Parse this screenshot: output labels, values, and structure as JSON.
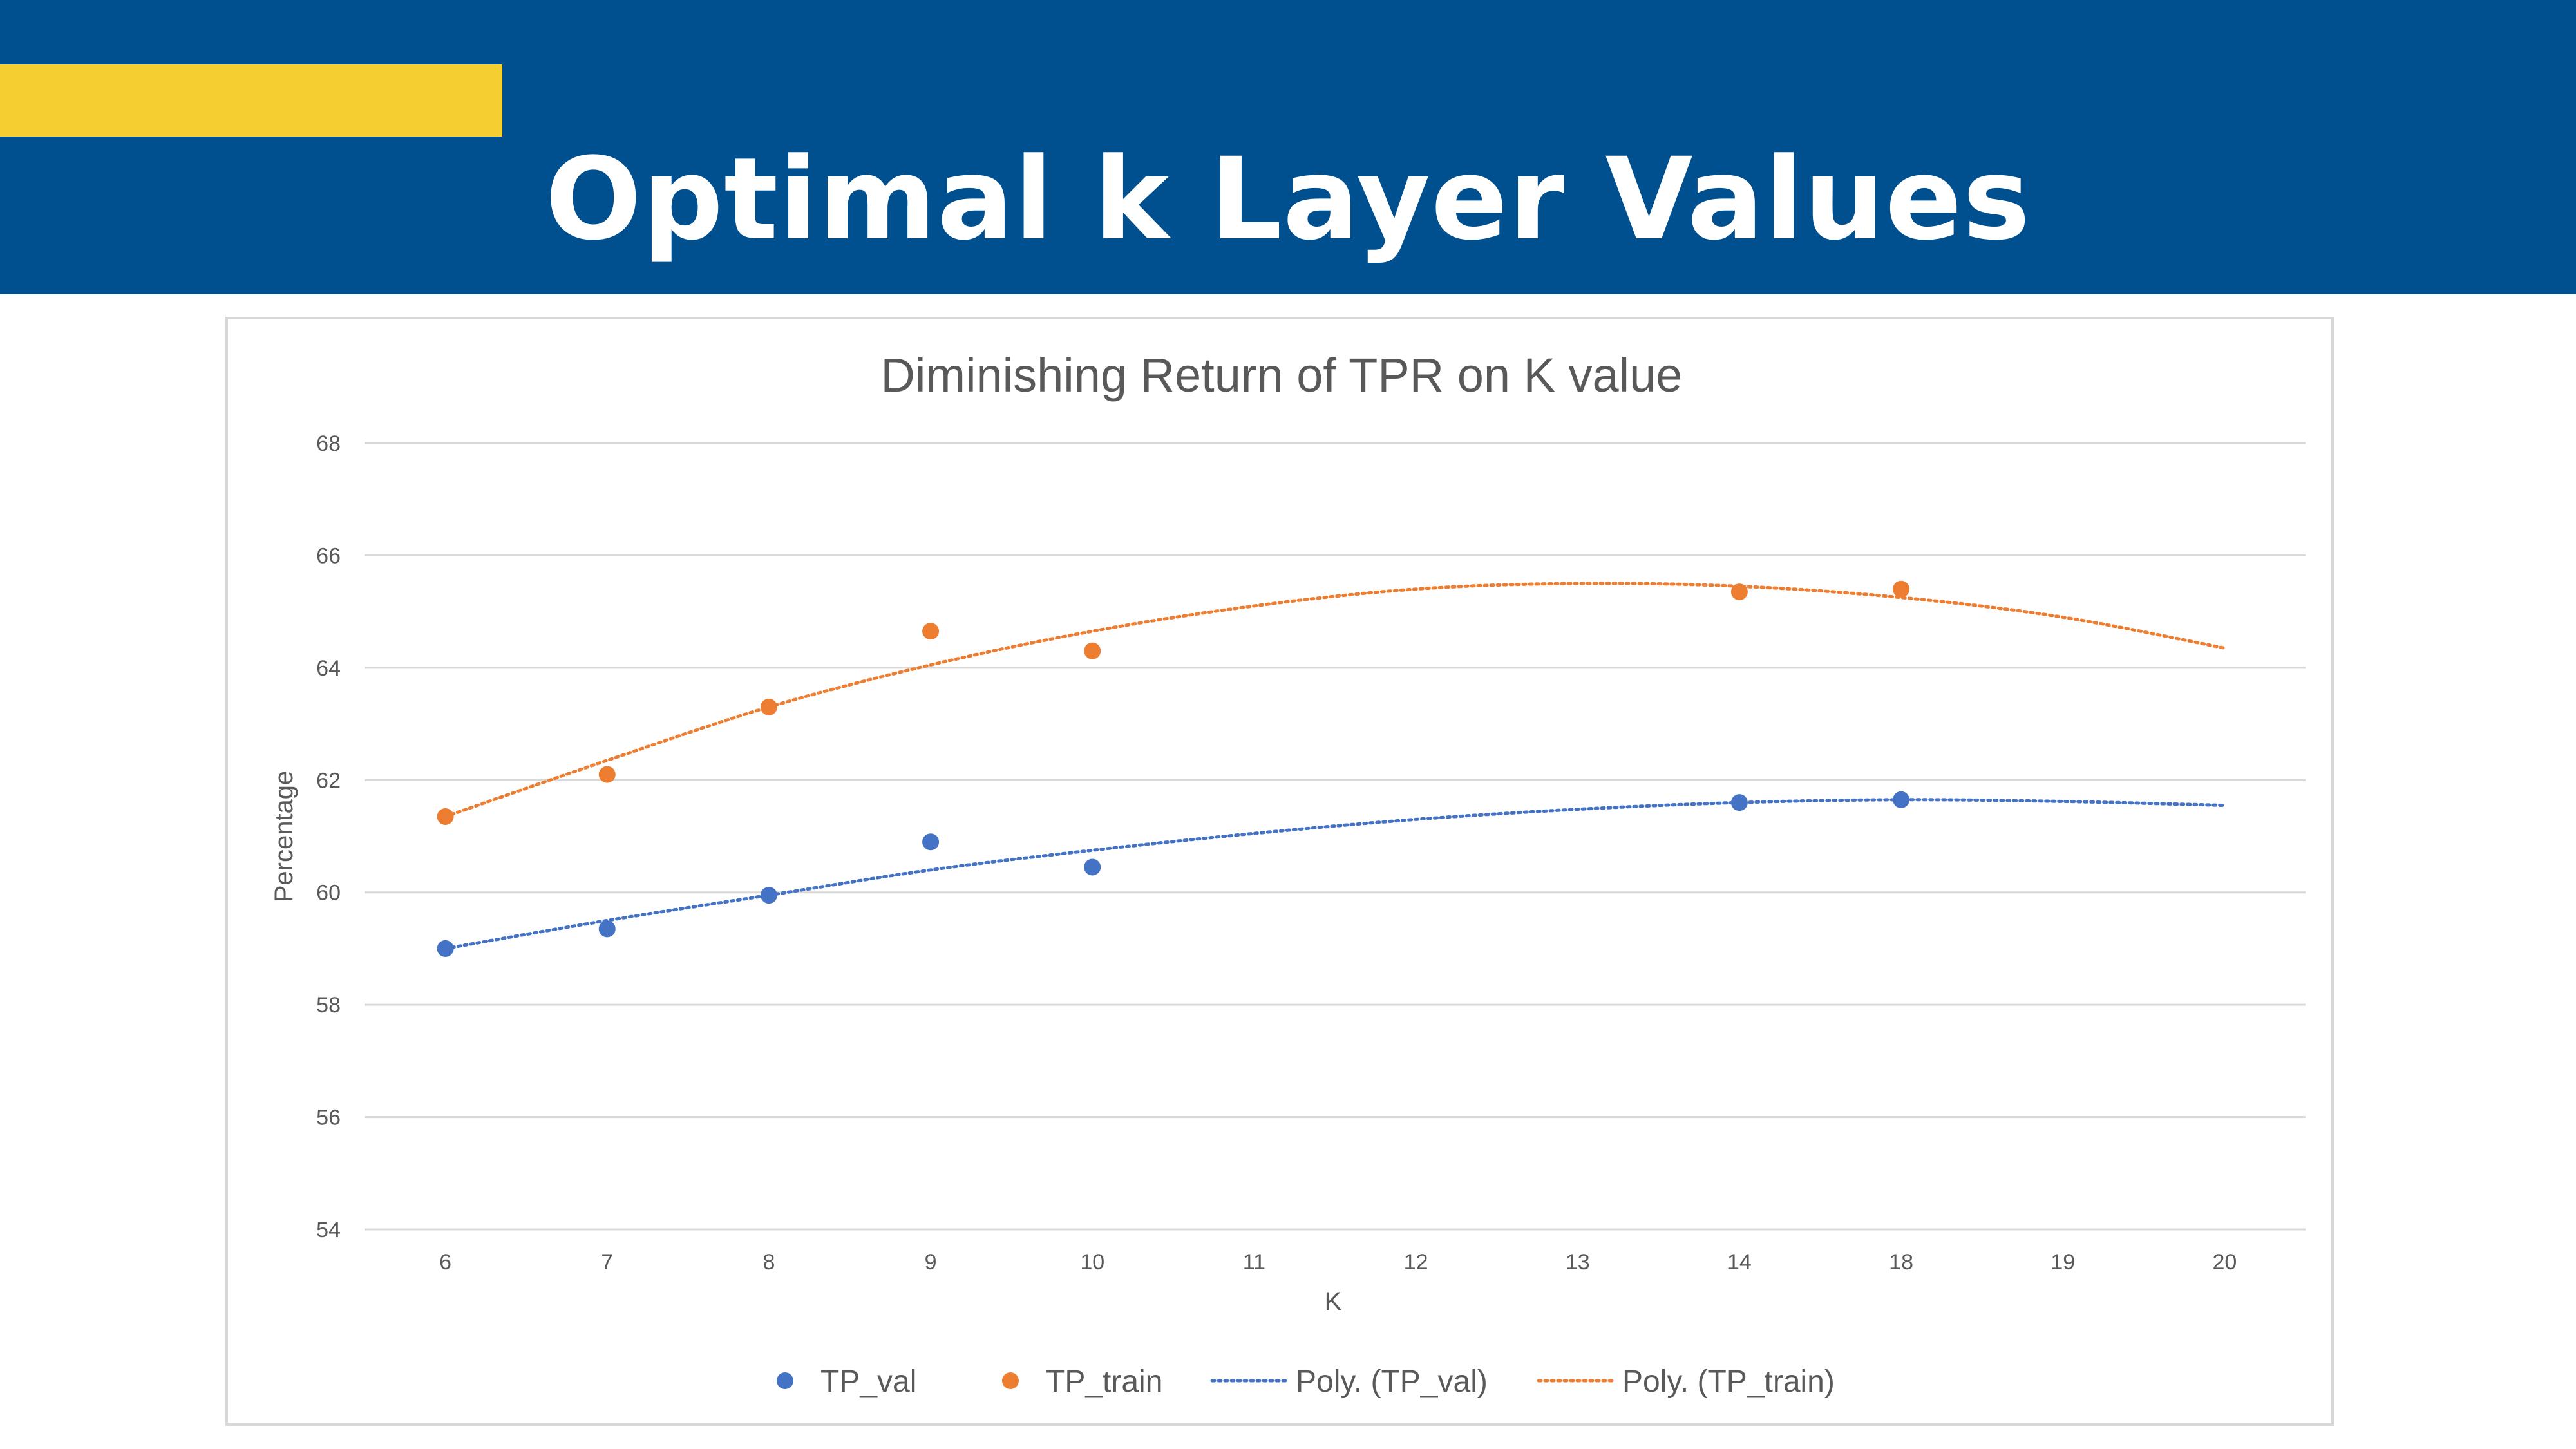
{
  "slide": {
    "title": "Optimal k Layer Values",
    "header_color": "#004f8f",
    "accent_color": "#f3cf2f"
  },
  "chart_data": {
    "type": "scatter",
    "title": "Diminishing Return of TPR on K value",
    "xlabel": "K",
    "ylabel": "Percentage",
    "categories": [
      "6",
      "7",
      "8",
      "9",
      "10",
      "11",
      "12",
      "13",
      "14",
      "18",
      "19",
      "20"
    ],
    "ylim": [
      54,
      68
    ],
    "yticks": [
      54,
      56,
      58,
      60,
      62,
      64,
      66,
      68
    ],
    "grid": true,
    "legend_position": "bottom",
    "series": [
      {
        "name": "TP_val",
        "color": "#4472c4",
        "points": [
          {
            "x": "6",
            "y": 59.0
          },
          {
            "x": "7",
            "y": 59.35
          },
          {
            "x": "8",
            "y": 59.95
          },
          {
            "x": "9",
            "y": 60.9
          },
          {
            "x": "10",
            "y": 60.45
          },
          {
            "x": "14",
            "y": 61.6
          },
          {
            "x": "18",
            "y": 61.65
          }
        ]
      },
      {
        "name": "TP_train",
        "color": "#ed7d31",
        "points": [
          {
            "x": "6",
            "y": 61.35
          },
          {
            "x": "7",
            "y": 62.1
          },
          {
            "x": "8",
            "y": 63.3
          },
          {
            "x": "9",
            "y": 64.65
          },
          {
            "x": "10",
            "y": 64.3
          },
          {
            "x": "14",
            "y": 65.35
          },
          {
            "x": "18",
            "y": 65.4
          }
        ]
      }
    ],
    "trendlines": [
      {
        "name": "Poly. (TP_val)",
        "color": "#4472c4",
        "style": "dotted",
        "points": [
          {
            "x": "6",
            "y": 59.0
          },
          {
            "x": "7",
            "y": 59.5
          },
          {
            "x": "8",
            "y": 59.95
          },
          {
            "x": "9",
            "y": 60.4
          },
          {
            "x": "10",
            "y": 60.75
          },
          {
            "x": "11",
            "y": 61.05
          },
          {
            "x": "12",
            "y": 61.3
          },
          {
            "x": "13",
            "y": 61.48
          },
          {
            "x": "14",
            "y": 61.6
          },
          {
            "x": "18",
            "y": 61.65
          },
          {
            "x": "19",
            "y": 61.62
          },
          {
            "x": "20",
            "y": 61.55
          }
        ]
      },
      {
        "name": "Poly. (TP_train)",
        "color": "#ed7d31",
        "style": "dotted",
        "points": [
          {
            "x": "6",
            "y": 61.35
          },
          {
            "x": "7",
            "y": 62.35
          },
          {
            "x": "8",
            "y": 63.3
          },
          {
            "x": "9",
            "y": 64.05
          },
          {
            "x": "10",
            "y": 64.65
          },
          {
            "x": "11",
            "y": 65.1
          },
          {
            "x": "12",
            "y": 65.4
          },
          {
            "x": "13",
            "y": 65.5
          },
          {
            "x": "14",
            "y": 65.45
          },
          {
            "x": "18",
            "y": 65.25
          },
          {
            "x": "19",
            "y": 64.9
          },
          {
            "x": "20",
            "y": 64.35
          }
        ]
      }
    ]
  }
}
